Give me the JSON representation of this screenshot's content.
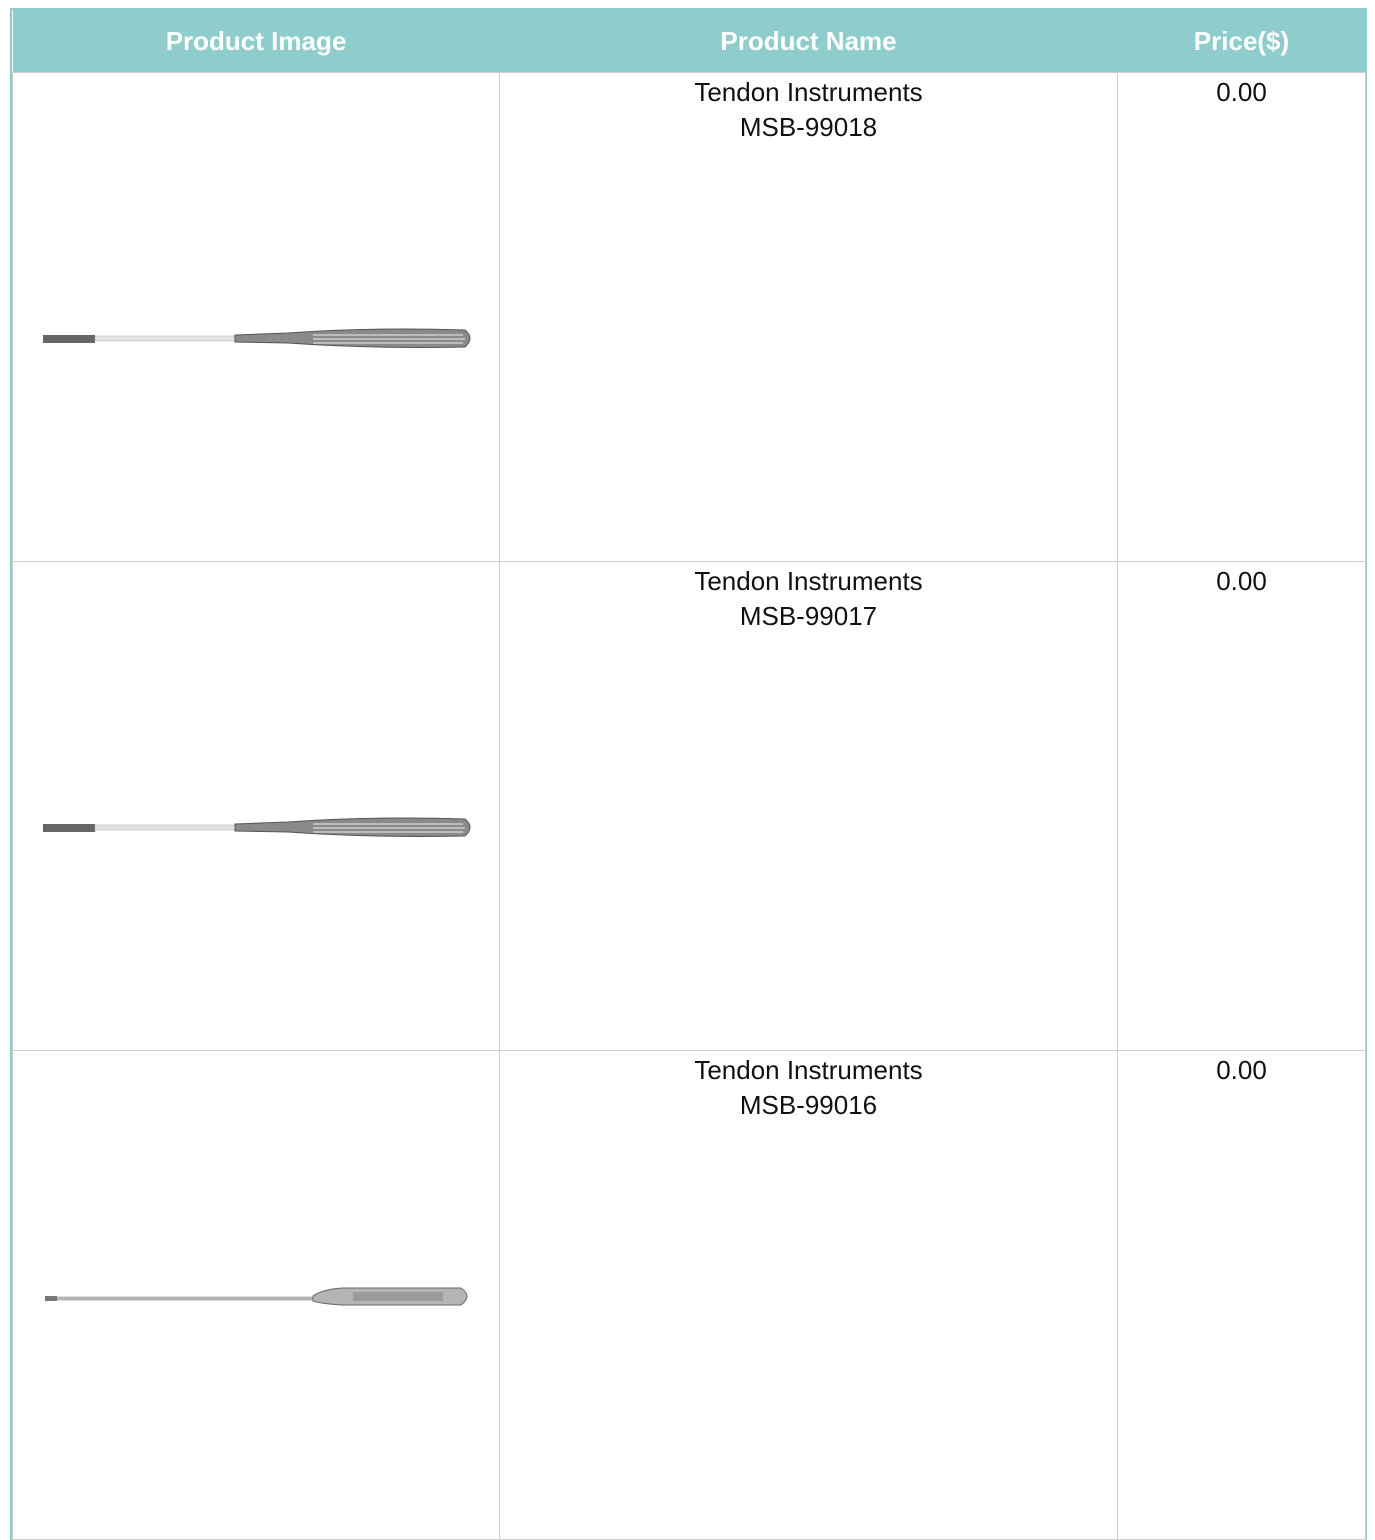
{
  "table": {
    "headers": [
      "Product Image",
      "Product Name",
      "Price($)"
    ],
    "rows": [
      {
        "name": "Tendon Instruments",
        "code": "MSB-99018",
        "price": "0.00"
      },
      {
        "name": "Tendon Instruments",
        "code": "MSB-99017",
        "price": "0.00"
      },
      {
        "name": "Tendon Instruments",
        "code": "MSB-99016",
        "price": "0.00"
      }
    ]
  }
}
